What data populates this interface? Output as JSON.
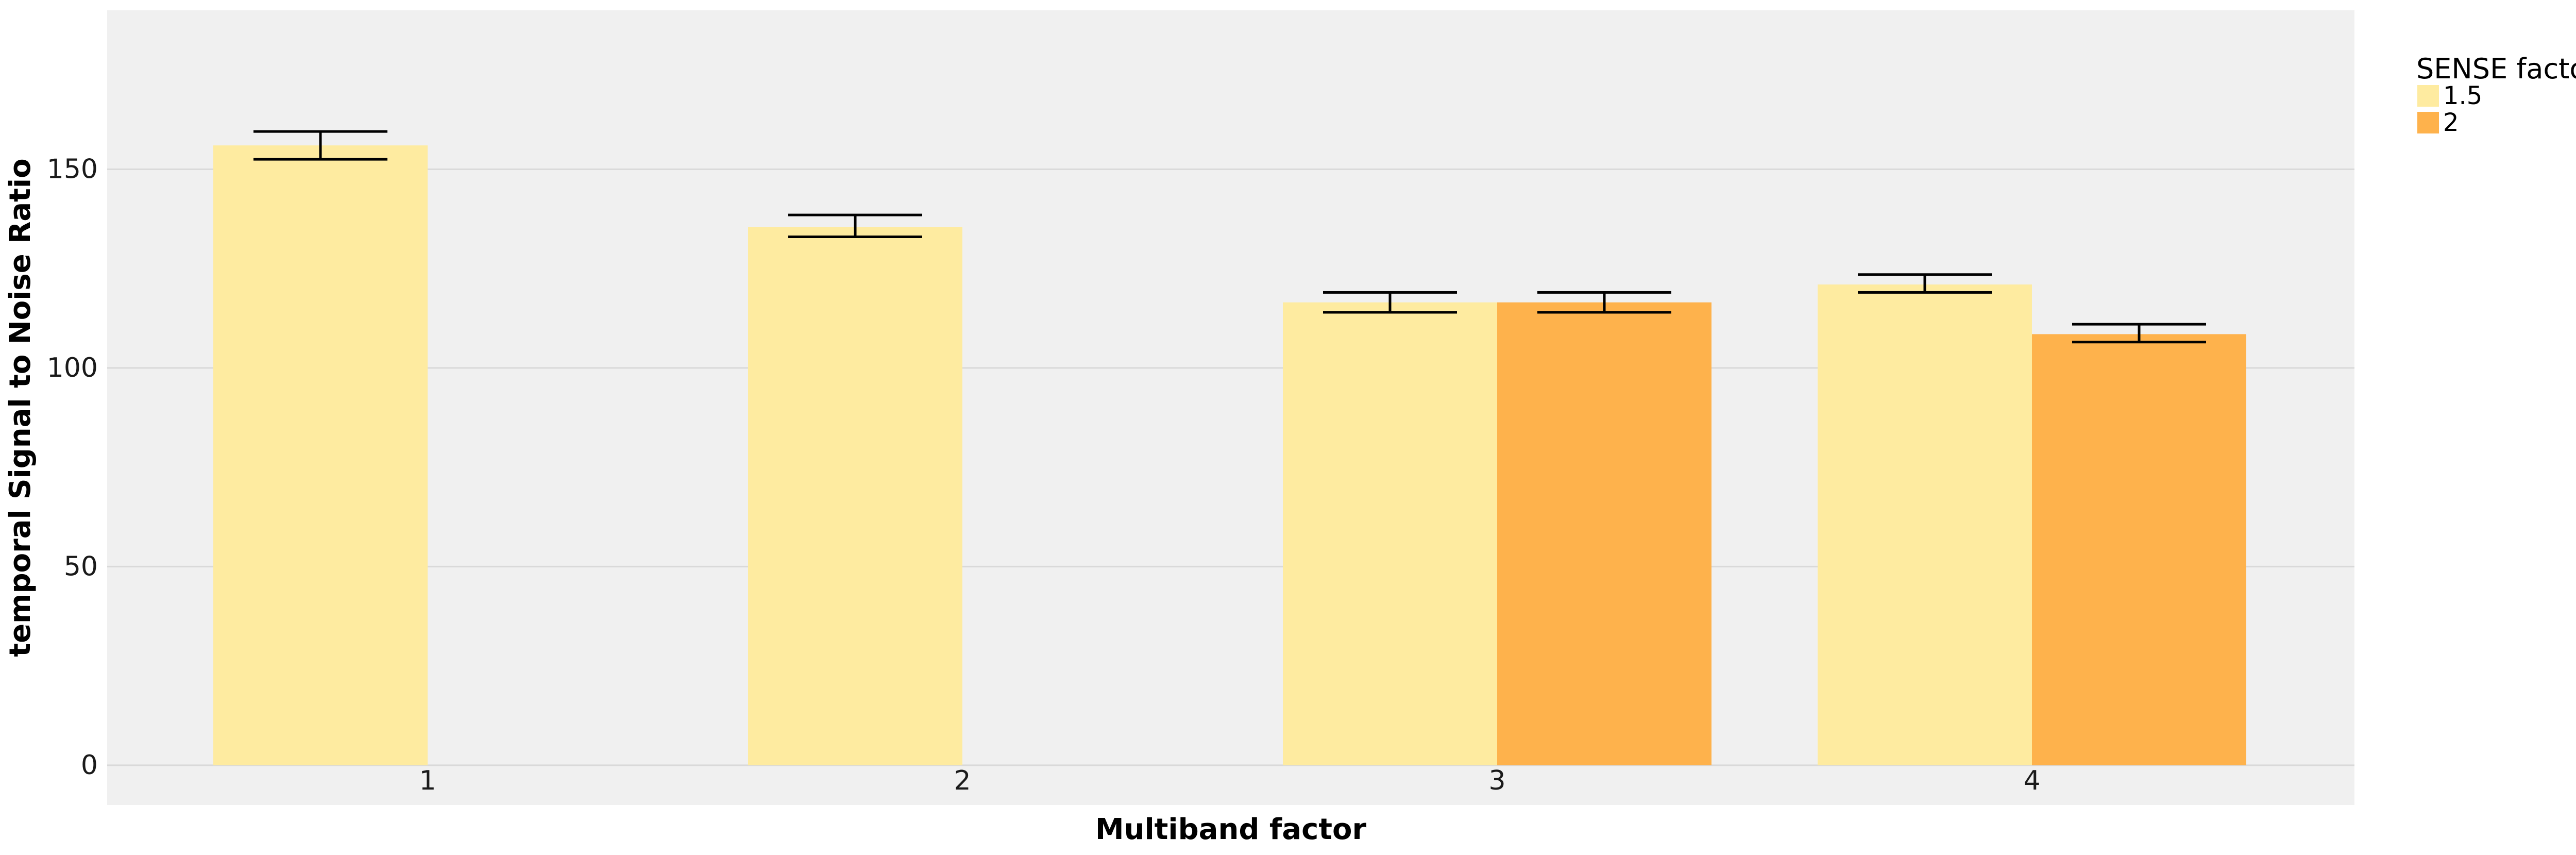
{
  "chart_data": {
    "type": "bar",
    "title": "",
    "xlabel": "Multiband factor",
    "ylabel": "temporal Signal to Noise Ratio",
    "categories": [
      "1",
      "2",
      "3",
      "4"
    ],
    "series": [
      {
        "name": "1.5",
        "color": "#FEEBA0",
        "values": [
          156,
          135.5,
          116.5,
          121
        ],
        "error_low": [
          152.5,
          133,
          114,
          119
        ],
        "error_high": [
          159.5,
          138.5,
          119,
          123.5
        ]
      },
      {
        "name": "2",
        "color": "#FEB24C",
        "values": [
          null,
          null,
          116.5,
          108.5
        ],
        "error_low": [
          null,
          null,
          114,
          106.5
        ],
        "error_high": [
          null,
          null,
          119,
          111
        ]
      }
    ],
    "yticks": [
      0,
      50,
      100,
      150
    ],
    "ylim": [
      -10,
      190
    ],
    "grid": true,
    "legend": {
      "title": "SENSE factor",
      "position": "right"
    },
    "background_color": "#F0F0F0",
    "gridline_color": "#D9D9D9"
  }
}
